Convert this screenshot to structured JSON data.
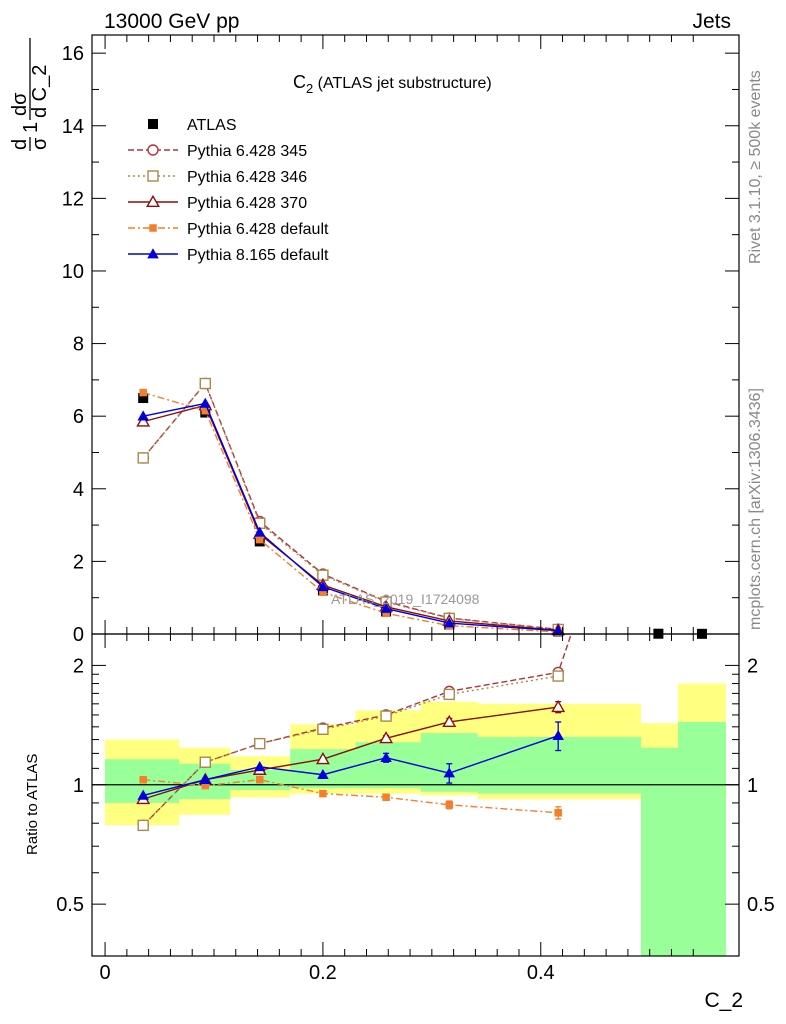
{
  "header": {
    "left_label": "13000 GeV pp",
    "right_label": "Jets"
  },
  "side_labels": {
    "rivet": "Rivet 3.1.10, ≥ 500k events",
    "mcplots": "mcplots.cern.ch [arXiv:1306.3436]"
  },
  "chart_data": [
    {
      "type": "line",
      "title": "C_2 (ATLAS jet substructure)",
      "title_main": "C",
      "title_sub": "2",
      "title_rest": " (ATLAS jet substructure)",
      "xlabel": "C_2",
      "ylabel": "1/σ dσ/d C_2",
      "ylabel_parts": {
        "frac1_num": "d",
        "frac1_den": "σ",
        "one": "1",
        "frac2_num": "dσ",
        "frac2_den": "d C_2"
      },
      "watermark": "ATLAS_2019_I1724098",
      "xlim": [
        -0.012,
        0.582
      ],
      "ylim": [
        0,
        16.5
      ],
      "yticks": [
        0,
        2,
        4,
        6,
        8,
        10,
        12,
        14,
        16
      ],
      "ytick_labels": [
        "0",
        "2",
        "4",
        "6",
        "8",
        "10",
        "12",
        "14",
        "16"
      ],
      "legend_position": "top-left",
      "x": [
        0.035,
        0.092,
        0.142,
        0.2,
        0.258,
        0.316,
        0.416,
        0.508,
        0.548
      ],
      "series": [
        {
          "name": "ATLAS",
          "color": "#000000",
          "marker": "square-filled",
          "dash": "none",
          "values": [
            6.5,
            6.1,
            2.55,
            1.2,
            0.62,
            0.26,
            0.07,
            0.008,
            0.005
          ]
        },
        {
          "name": "Pythia 6.428 345",
          "color": "#b2313c",
          "marker": "circle-open",
          "dash": "6,3",
          "values": [
            4.85,
            6.9,
            3.1,
            1.65,
            0.9,
            0.44,
            0.13,
            null,
            null
          ]
        },
        {
          "name": "Pythia 6.428 346",
          "color": "#a8894b",
          "marker": "square-open",
          "dash": "2,3",
          "values": [
            4.85,
            6.9,
            3.05,
            1.62,
            0.88,
            0.43,
            0.125,
            null,
            null
          ]
        },
        {
          "name": "Pythia 6.428 370",
          "color": "#8b0d0d",
          "marker": "triangle-open",
          "dash": "none",
          "values": [
            5.85,
            6.3,
            2.75,
            1.35,
            0.75,
            0.36,
            0.105,
            null,
            null
          ]
        },
        {
          "name": "Pythia 6.428 default",
          "color": "#f47e2a",
          "marker": "square-small",
          "dash": "7,3,2,3",
          "values": [
            6.65,
            6.15,
            2.6,
            1.15,
            0.57,
            0.23,
            0.055,
            null,
            null
          ]
        },
        {
          "name": "Pythia 8.165 default",
          "color": "#0000dd",
          "marker": "triangle-filled",
          "dash": "none",
          "values": [
            6.0,
            6.35,
            2.8,
            1.3,
            0.7,
            0.3,
            0.09,
            null,
            null
          ]
        }
      ]
    },
    {
      "type": "line",
      "title": "Ratio to ATLAS",
      "ylabel": "Ratio to ATLAS",
      "xlim": [
        -0.012,
        0.582
      ],
      "ylim_log": [
        0.37,
        2.4
      ],
      "yticks": [
        0.5,
        1,
        2
      ],
      "ytick_labels": [
        "0.5",
        "1",
        "2"
      ],
      "xticks": [
        0,
        0.2,
        0.4
      ],
      "xtick_labels": [
        "0",
        "0.2",
        "0.4"
      ],
      "bins": [
        {
          "lo": 0.0,
          "hi": 0.068,
          "yellow": [
            0.79,
            1.3
          ],
          "green": [
            0.9,
            1.16
          ]
        },
        {
          "lo": 0.068,
          "hi": 0.115,
          "yellow": [
            0.84,
            1.24
          ],
          "green": [
            0.92,
            1.13
          ]
        },
        {
          "lo": 0.115,
          "hi": 0.17,
          "yellow": [
            0.93,
            1.18
          ],
          "green": [
            0.97,
            1.09
          ]
        },
        {
          "lo": 0.17,
          "hi": 0.23,
          "yellow": [
            0.95,
            1.42
          ],
          "green": [
            0.98,
            1.23
          ]
        },
        {
          "lo": 0.23,
          "hi": 0.29,
          "yellow": [
            0.95,
            1.54
          ],
          "green": [
            0.98,
            1.28
          ]
        },
        {
          "lo": 0.29,
          "hi": 0.342,
          "yellow": [
            0.94,
            1.62
          ],
          "green": [
            0.96,
            1.35
          ]
        },
        {
          "lo": 0.342,
          "hi": 0.492,
          "yellow": [
            0.92,
            1.6
          ],
          "green": [
            0.95,
            1.32
          ]
        },
        {
          "lo": 0.492,
          "hi": 0.526,
          "yellow": [
            0.37,
            1.43
          ],
          "green": [
            0.37,
            1.24
          ]
        },
        {
          "lo": 0.526,
          "hi": 0.57,
          "yellow": [
            0.37,
            1.8
          ],
          "green": [
            0.37,
            1.44
          ]
        }
      ],
      "x": [
        0.035,
        0.092,
        0.142,
        0.2,
        0.258,
        0.316,
        0.416
      ],
      "series": [
        {
          "name": "Pythia 6.428 345",
          "color": "#b2313c",
          "marker": "circle-open",
          "dash": "6,3",
          "values": [
            0.79,
            1.14,
            1.27,
            1.39,
            1.5,
            1.72,
            1.92
          ],
          "tail": [
            0.428,
            2.4
          ]
        },
        {
          "name": "Pythia 6.428 346",
          "color": "#a8894b",
          "marker": "square-open",
          "dash": "2,3",
          "values": [
            0.79,
            1.14,
            1.27,
            1.38,
            1.49,
            1.69,
            1.88
          ]
        },
        {
          "name": "Pythia 6.428 370",
          "color": "#8b0d0d",
          "marker": "triangle-open",
          "dash": "none",
          "values": [
            0.92,
            1.03,
            1.09,
            1.16,
            1.31,
            1.44,
            1.57
          ],
          "err": [
            0,
            0,
            0,
            0,
            0.02,
            0.03,
            0.05
          ]
        },
        {
          "name": "Pythia 6.428 default",
          "color": "#f47e2a",
          "marker": "square-small",
          "dash": "7,3,2,3",
          "values": [
            1.03,
            0.995,
            1.03,
            0.95,
            0.93,
            0.89,
            0.85
          ],
          "err": [
            0,
            0,
            0,
            0,
            0.01,
            0.02,
            0.03
          ]
        },
        {
          "name": "Pythia 8.165 default",
          "color": "#0000dd",
          "marker": "triangle-filled",
          "dash": "none",
          "values": [
            0.94,
            1.03,
            1.11,
            1.06,
            1.17,
            1.07,
            1.33
          ],
          "err": [
            0,
            0,
            0,
            0,
            0.03,
            0.06,
            0.11
          ]
        }
      ]
    }
  ]
}
